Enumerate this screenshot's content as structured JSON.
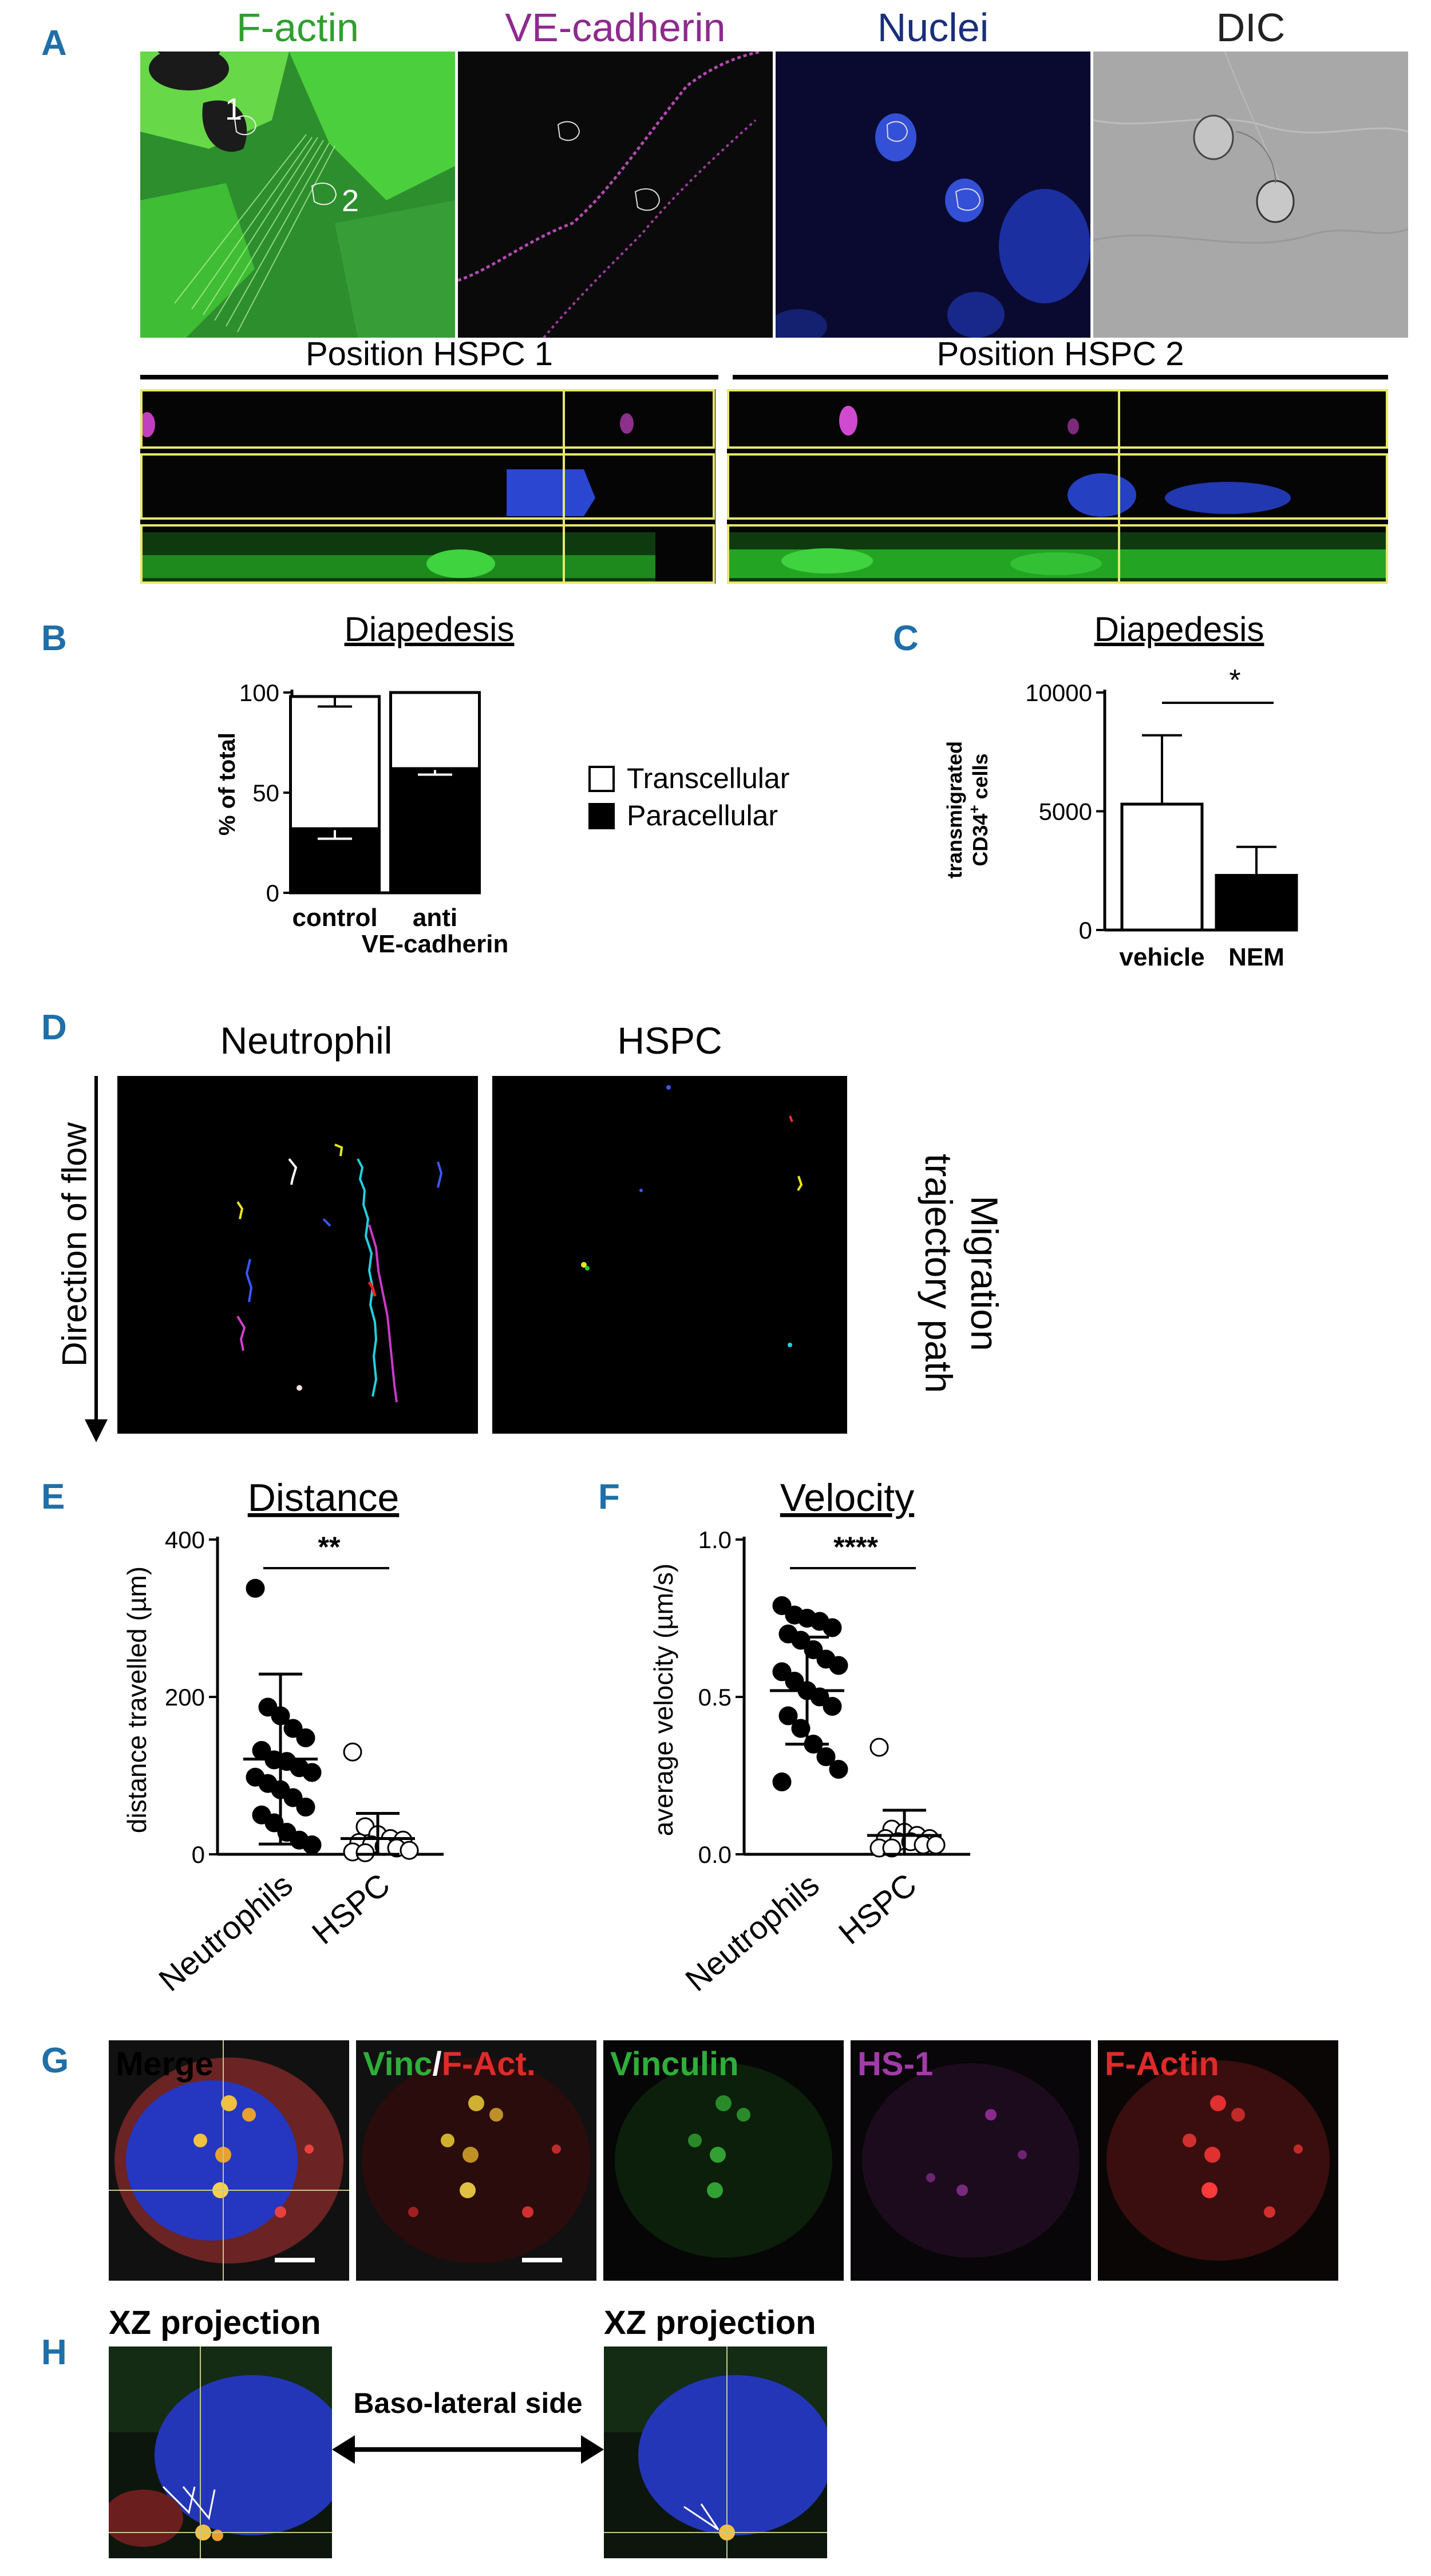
{
  "panels": {
    "A": "A",
    "B": "B",
    "C": "C",
    "D": "D",
    "E": "E",
    "F": "F",
    "G": "G",
    "H": "H"
  },
  "panel_a": {
    "channels": [
      "F-actin",
      "VE-cadherin",
      "Nuclei",
      "DIC"
    ],
    "cell_labels": [
      "1",
      "2"
    ],
    "positions": [
      "Position HSPC 1",
      "Position HSPC 2"
    ],
    "colors": {
      "factin": "#2bb52b",
      "vecad": "#8e2a8e",
      "nuclei": "#1a2f7a",
      "dic": "#222222"
    }
  },
  "panel_d": {
    "titles": [
      "Neutrophil",
      "HSPC"
    ],
    "flow_label": "Direction of flow",
    "side_label_1": "Migration",
    "side_label_2": "trajectory path"
  },
  "panel_g": {
    "labels": [
      "Merge",
      "Vinc",
      "/",
      "F-Act.",
      "Vinculin",
      "HS-1",
      "F-Actin"
    ],
    "colors": {
      "merge": "#ffffff",
      "vinc": "#2fae3a",
      "factin": "#e02a2a",
      "hs1": "#a23aa8"
    }
  },
  "panel_h": {
    "projection_label": "XZ projection",
    "arrow_label": "Baso-lateral side"
  },
  "chart_data": [
    {
      "id": "B",
      "type": "bar",
      "stacked": true,
      "title": "Diapedesis",
      "ylabel": "% of total",
      "categories": [
        "control",
        "anti VE-cadherin"
      ],
      "category_lines": [
        [
          "control"
        ],
        [
          "anti",
          "VE-cadherin"
        ]
      ],
      "ylim": [
        0,
        100
      ],
      "yticks": [
        0,
        50,
        100
      ],
      "series": [
        {
          "name": "Paracellular",
          "values": [
            32,
            62
          ],
          "err": [
            5,
            3
          ],
          "fill": "#000000"
        },
        {
          "name": "Transcellular",
          "values": [
            66,
            38
          ],
          "err": [
            5,
            0
          ],
          "fill": "#ffffff"
        }
      ],
      "legend_order": [
        "Transcellular",
        "Paracellular"
      ],
      "legend_position": "right"
    },
    {
      "id": "C",
      "type": "bar",
      "title": "Diapedesis",
      "ylabel_line1": "transmigrated",
      "ylabel_line2": "CD34",
      "ylabel_sup": "+",
      "ylabel_tail": " cells",
      "categories": [
        "vehicle",
        "NEM"
      ],
      "values": [
        5300,
        2300
      ],
      "err": [
        2900,
        1200
      ],
      "fills": [
        "#ffffff",
        "#000000"
      ],
      "ylim": [
        0,
        10000
      ],
      "yticks": [
        0,
        5000,
        10000
      ],
      "significance": "*"
    },
    {
      "id": "E",
      "type": "scatter",
      "title": "Distance",
      "ylabel": "distance travelled (µm)",
      "categories": [
        "Neutrophils",
        "HSPC"
      ],
      "ylim": [
        0,
        400
      ],
      "yticks": [
        0,
        200,
        400
      ],
      "significance": "**",
      "groups": [
        {
          "name": "Neutrophils",
          "filled": true,
          "mean": 121,
          "sd": 108,
          "values": [
            338,
            187,
            176,
            160,
            148,
            132,
            120,
            118,
            110,
            104,
            98,
            90,
            82,
            72,
            60,
            50,
            40,
            28,
            18,
            12
          ]
        },
        {
          "name": "HSPC",
          "filled": false,
          "mean": 20,
          "sd": 32,
          "values": [
            130,
            35,
            25,
            20,
            18,
            15,
            12,
            10,
            8,
            5,
            3,
            2
          ]
        }
      ]
    },
    {
      "id": "F",
      "type": "scatter",
      "title": "Velocity",
      "ylabel": "average velocity (µm/s)",
      "categories": [
        "Neutrophils",
        "HSPC"
      ],
      "ylim": [
        0,
        1.0
      ],
      "yticks": [
        0.0,
        0.5,
        1.0
      ],
      "ytick_labels": [
        "0.0",
        "0.5",
        "1.0"
      ],
      "significance": "****",
      "groups": [
        {
          "name": "Neutrophils",
          "filled": true,
          "mean": 0.52,
          "sd": 0.17,
          "values": [
            0.79,
            0.76,
            0.75,
            0.74,
            0.72,
            0.7,
            0.68,
            0.65,
            0.62,
            0.6,
            0.58,
            0.55,
            0.52,
            0.5,
            0.47,
            0.44,
            0.4,
            0.35,
            0.31,
            0.27,
            0.23
          ]
        },
        {
          "name": "HSPC",
          "filled": false,
          "mean": 0.06,
          "sd": 0.08,
          "values": [
            0.34,
            0.08,
            0.07,
            0.06,
            0.05,
            0.05,
            0.04,
            0.04,
            0.03,
            0.03,
            0.02,
            0.02
          ]
        }
      ]
    }
  ]
}
